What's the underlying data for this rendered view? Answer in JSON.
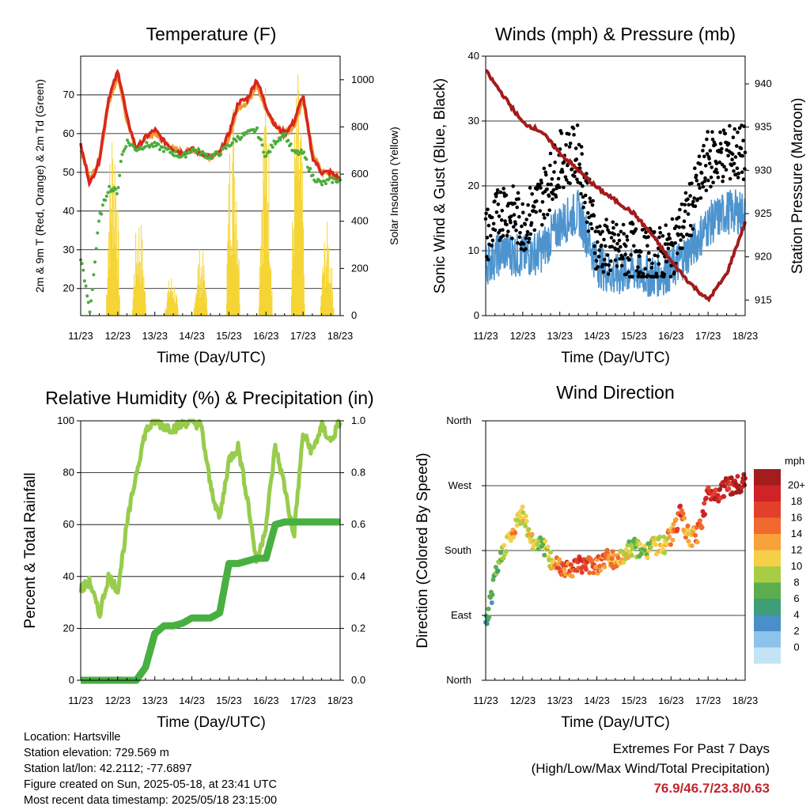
{
  "days": [
    "11/23",
    "12/23",
    "13/23",
    "14/23",
    "15/23",
    "16/23",
    "17/23",
    "18/23"
  ],
  "xlabel": "Time (Day/UTC)",
  "colors": {
    "red": "#d7261e",
    "orange": "#f39b35",
    "green": "#4cac3c",
    "yellow": "#f5d536",
    "blue": "#4d94cf",
    "black": "#000000",
    "maroon": "#a31b1b",
    "rh": "#97cc4c",
    "precip": "#48b041"
  },
  "panels": {
    "temperature": {
      "title": "Temperature (F)",
      "ylabel_left": "2m & 9m T (Red, Orange) & 2m Td (Green)",
      "ylabel_right": "Solar Insolation (Yellow)",
      "ylim": [
        13,
        80
      ],
      "yticks": [
        20,
        30,
        40,
        50,
        60,
        70
      ],
      "y2lim": [
        0,
        1100
      ],
      "y2ticks": [
        0,
        200,
        400,
        600,
        800,
        1000
      ]
    },
    "winds": {
      "title": "Winds (mph) & Pressure (mb)",
      "ylabel_left": "Sonic Wind & Gust (Blue, Black)",
      "ylabel_right": "Station Pressure (Maroon)",
      "ylim": [
        0,
        40
      ],
      "yticks": [
        0,
        10,
        20,
        30,
        40
      ],
      "y2lim": [
        913.2,
        943.2
      ],
      "y2ticks": [
        915,
        920,
        925,
        930,
        935,
        940
      ]
    },
    "humidity": {
      "title": "Relative Humidity (%) & Precipitation (in)",
      "ylabel_left": "Percent & Total Rainfall",
      "ylim": [
        0,
        100
      ],
      "yticks": [
        0,
        20,
        40,
        60,
        80,
        100
      ],
      "y2lim": [
        0,
        1.0
      ],
      "y2ticks": [
        "0.0",
        "0.2",
        "0.4",
        "0.6",
        "0.8",
        "1.0"
      ]
    },
    "direction": {
      "title": "Wind Direction",
      "ylabel_left": "Direction (Colored By Speed)",
      "yticks": [
        "North",
        "East",
        "South",
        "West",
        "North"
      ],
      "legend_title": "mph",
      "legend_labels": [
        "20+",
        "18",
        "16",
        "14",
        "12",
        "10",
        "8",
        "6",
        "4",
        "2",
        "0"
      ],
      "legend_colors": [
        "#a51c1c",
        "#cf2327",
        "#e3402c",
        "#f0692d",
        "#f7a23a",
        "#f5cf47",
        "#a8cd45",
        "#5aae4d",
        "#3e9e78",
        "#4a8fc8",
        "#8dc3ea",
        "#c4e4f6"
      ]
    }
  },
  "chart_data": [
    {
      "type": "line",
      "title": "Temperature (F)",
      "xlabel": "Time (Day/UTC)",
      "ylabel": "2m & 9m T (Red, Orange) & 2m Td (Green)",
      "y2label": "Solar Insolation (Yellow)",
      "x": [
        0,
        0.25,
        0.5,
        0.75,
        1,
        1.1,
        1.25,
        1.5,
        1.75,
        2,
        2.25,
        2.5,
        2.75,
        3,
        3.25,
        3.5,
        3.75,
        4,
        4.25,
        4.5,
        4.75,
        5,
        5.25,
        5.5,
        5.75,
        6,
        6.25,
        6.5,
        6.75,
        7
      ],
      "ylim": [
        13,
        80
      ],
      "y2lim": [
        0,
        1100
      ],
      "series": [
        {
          "name": "2m T (Red)",
          "values": [
            57,
            47,
            53,
            69,
            76,
            72,
            64,
            56,
            59,
            61,
            58,
            56,
            55,
            56,
            55,
            54,
            55,
            60,
            68,
            69,
            74,
            67,
            62,
            60,
            63,
            70,
            54,
            50,
            50,
            48
          ]
        },
        {
          "name": "9m T (Orange)",
          "values": [
            56,
            48,
            53,
            68,
            75,
            71,
            63,
            56,
            59,
            60,
            58,
            56,
            55,
            56,
            55,
            54,
            55,
            59,
            67,
            68,
            73,
            66,
            62,
            60,
            62,
            69,
            55,
            50,
            50,
            48
          ]
        },
        {
          "name": "2m Td (Green)",
          "values": [
            28,
            14,
            38,
            46,
            45,
            54,
            58,
            56,
            57,
            57,
            56,
            55,
            54,
            56,
            55,
            54,
            55,
            57,
            59,
            60,
            61,
            54,
            58,
            60,
            55,
            55,
            49,
            47,
            48,
            48
          ]
        },
        {
          "name": "Solar Insolation (Yellow)",
          "peaks": [
            [
              1,
              900
            ],
            [
              1.8,
              450
            ],
            [
              2.8,
              180
            ],
            [
              3.7,
              300
            ],
            [
              4.7,
              1000
            ],
            [
              5.7,
              1020
            ],
            [
              6.7,
              1050
            ],
            [
              7.6,
              400
            ]
          ]
        }
      ]
    },
    {
      "type": "line",
      "title": "Winds (mph) & Pressure (mb)",
      "xlabel": "Time (Day/UTC)",
      "ylabel": "Sonic Wind & Gust (Blue, Black)",
      "y2label": "Station Pressure (Maroon)",
      "x": [
        0,
        0.5,
        1,
        1.5,
        2,
        2.5,
        3,
        3.5,
        4,
        4.5,
        5,
        5.5,
        6,
        6.5,
        7
      ],
      "ylim": [
        0,
        40
      ],
      "y2lim": [
        913.2,
        943.2
      ],
      "series": [
        {
          "name": "Sonic Wind (Blue)",
          "values": [
            8,
            10,
            9,
            10,
            14,
            16,
            8,
            6,
            7,
            6,
            7,
            10,
            14,
            16,
            16
          ]
        },
        {
          "name": "Gust (Black)",
          "values": [
            12,
            17,
            14,
            18,
            24,
            25,
            11,
            10,
            10,
            9,
            10,
            16,
            24,
            25,
            25
          ]
        },
        {
          "name": "Station Pressure (Maroon)",
          "values": [
            941.5,
            938.5,
            935.5,
            934.5,
            932,
            930,
            928,
            926.5,
            925,
            922.5,
            919.5,
            917,
            915,
            918,
            924
          ]
        }
      ]
    },
    {
      "type": "line",
      "title": "Relative Humidity (%) & Precipitation (in)",
      "xlabel": "Time (Day/UTC)",
      "ylabel": "Percent & Total Rainfall",
      "x": [
        0,
        0.25,
        0.5,
        0.75,
        1,
        1.25,
        1.5,
        1.75,
        2,
        2.25,
        2.5,
        2.75,
        3,
        3.25,
        3.5,
        3.75,
        4,
        4.25,
        4.5,
        4.75,
        5,
        5.25,
        5.5,
        5.75,
        6,
        6.25,
        6.5,
        6.75,
        7
      ],
      "ylim": [
        0,
        100
      ],
      "y2lim": [
        0,
        1.0
      ],
      "series": [
        {
          "name": "Relative Humidity",
          "values": [
            35,
            38,
            25,
            40,
            35,
            60,
            80,
            96,
            100,
            98,
            97,
            99,
            100,
            98,
            75,
            62,
            85,
            90,
            70,
            45,
            60,
            90,
            75,
            55,
            95,
            88,
            98,
            92,
            100
          ]
        },
        {
          "name": "Total Precipitation",
          "values": [
            0,
            0,
            0,
            0,
            0,
            0,
            0,
            0.05,
            0.18,
            0.21,
            0.21,
            0.22,
            0.24,
            0.24,
            0.24,
            0.26,
            0.45,
            0.45,
            0.46,
            0.47,
            0.47,
            0.6,
            0.61,
            0.61,
            0.61,
            0.61,
            0.61,
            0.61,
            0.61
          ]
        }
      ]
    },
    {
      "type": "scatter",
      "title": "Wind Direction",
      "xlabel": "Time (Day/UTC)",
      "ylabel": "Direction (Colored By Speed)",
      "x": [
        0,
        0.25,
        0.5,
        0.75,
        1,
        1.25,
        1.5,
        1.75,
        2,
        2.25,
        2.5,
        2.75,
        3,
        3.25,
        3.5,
        3.75,
        4,
        4.25,
        4.5,
        4.75,
        5,
        5.25,
        5.5,
        5.75,
        6,
        6.25,
        6.5,
        6.75,
        7
      ],
      "y_degrees": [
        75,
        140,
        185,
        205,
        235,
        190,
        195,
        165,
        160,
        155,
        160,
        160,
        160,
        170,
        165,
        175,
        185,
        175,
        190,
        185,
        200,
        230,
        195,
        205,
        260,
        260,
        270,
        270,
        275
      ],
      "speed_mph": [
        3,
        5,
        9,
        11,
        9,
        10,
        7,
        10,
        14,
        15,
        15,
        16,
        15,
        13,
        12,
        10,
        8,
        8,
        9,
        10,
        12,
        16,
        10,
        15,
        18,
        18,
        19,
        19,
        20
      ]
    }
  ],
  "info": {
    "location": "Location: Hartsville",
    "elevation": "Station elevation: 729.569 m",
    "latlon": "Station lat/lon: 42.2112; -77.6897",
    "created": "Figure created on Sun, 2025-05-18, at 23:41 UTC",
    "recent": "Most recent data timestamp: 2025/05/18 23:15:00"
  },
  "extremes": {
    "line1": "Extremes For Past 7 Days",
    "line2": "(High/Low/Max Wind/Total Precipitation)",
    "values": "76.9/46.7/23.8/0.63"
  }
}
